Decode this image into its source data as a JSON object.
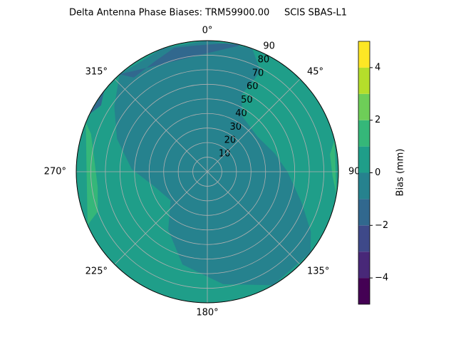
{
  "chart_data": {
    "type": "polar_contour",
    "title": "Delta Antenna Phase Biases: TRM59900.00     SCIS SBAS-L1",
    "theta_ticks": [
      {
        "value": 0,
        "label": "0°"
      },
      {
        "value": 45,
        "label": "45°"
      },
      {
        "value": 90,
        "label": "90°"
      },
      {
        "value": 135,
        "label": "135°"
      },
      {
        "value": 180,
        "label": "180°"
      },
      {
        "value": 225,
        "label": "225°"
      },
      {
        "value": 270,
        "label": "270°"
      },
      {
        "value": 315,
        "label": "315°"
      }
    ],
    "rlim": [
      0,
      90
    ],
    "rticks": [
      10,
      20,
      30,
      40,
      50,
      60,
      70,
      80,
      90
    ],
    "grid": true,
    "colorbar": {
      "label": "Bias (mm)",
      "lim": [
        -5,
        5
      ],
      "ticks": [
        {
          "value": -4,
          "label": "−4"
        },
        {
          "value": -2,
          "label": "−2"
        },
        0,
        2,
        4
      ],
      "levels": [
        -5,
        -4,
        -3,
        -2,
        -1,
        0,
        1,
        2,
        3,
        4,
        5
      ],
      "colors": [
        "#440154",
        "#482878",
        "#3e4989",
        "#31688e",
        "#26828e",
        "#1f9e89",
        "#35b779",
        "#6ece58",
        "#b5de2b",
        "#fde725"
      ]
    }
  }
}
